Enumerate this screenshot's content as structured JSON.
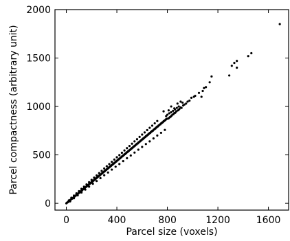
{
  "chart_data": {
    "type": "scatter",
    "title": "",
    "xlabel": "Parcel size (voxels)",
    "ylabel": "Parcel compactness (arbitrary unit)",
    "xlim": [
      -90,
      1760
    ],
    "ylim": [
      -70,
      2000
    ],
    "xticks": [
      0,
      400,
      800,
      1200,
      1600
    ],
    "yticks": [
      0,
      500,
      1000,
      1500,
      2000
    ],
    "grid": false,
    "marker_color": "#000000",
    "note": "Dense cloud of roughly linear points (y ≈ 1.08·x); dense band digitized as a representative sample, sparse outliers listed individually.",
    "points": [
      [
        0,
        0
      ],
      [
        5,
        6
      ],
      [
        10,
        11
      ],
      [
        15,
        15
      ],
      [
        20,
        22
      ],
      [
        25,
        27
      ],
      [
        30,
        34
      ],
      [
        35,
        38
      ],
      [
        40,
        44
      ],
      [
        45,
        48
      ],
      [
        50,
        55
      ],
      [
        55,
        58
      ],
      [
        60,
        66
      ],
      [
        65,
        70
      ],
      [
        70,
        77
      ],
      [
        75,
        80
      ],
      [
        80,
        88
      ],
      [
        85,
        90
      ],
      [
        90,
        99
      ],
      [
        95,
        102
      ],
      [
        100,
        110
      ],
      [
        105,
        112
      ],
      [
        110,
        121
      ],
      [
        115,
        124
      ],
      [
        120,
        132
      ],
      [
        125,
        134
      ],
      [
        130,
        143
      ],
      [
        135,
        146
      ],
      [
        140,
        154
      ],
      [
        145,
        156
      ],
      [
        150,
        165
      ],
      [
        155,
        168
      ],
      [
        160,
        176
      ],
      [
        165,
        178
      ],
      [
        170,
        187
      ],
      [
        175,
        190
      ],
      [
        180,
        198
      ],
      [
        185,
        200
      ],
      [
        190,
        209
      ],
      [
        195,
        212
      ],
      [
        200,
        220
      ],
      [
        205,
        222
      ],
      [
        210,
        231
      ],
      [
        215,
        234
      ],
      [
        220,
        242
      ],
      [
        225,
        244
      ],
      [
        230,
        253
      ],
      [
        235,
        256
      ],
      [
        240,
        264
      ],
      [
        245,
        266
      ],
      [
        250,
        275
      ],
      [
        255,
        278
      ],
      [
        260,
        286
      ],
      [
        265,
        288
      ],
      [
        270,
        297
      ],
      [
        275,
        300
      ],
      [
        280,
        308
      ],
      [
        285,
        310
      ],
      [
        290,
        319
      ],
      [
        295,
        322
      ],
      [
        300,
        330
      ],
      [
        305,
        332
      ],
      [
        310,
        341
      ],
      [
        315,
        344
      ],
      [
        320,
        352
      ],
      [
        325,
        354
      ],
      [
        330,
        363
      ],
      [
        335,
        366
      ],
      [
        340,
        374
      ],
      [
        345,
        376
      ],
      [
        350,
        385
      ],
      [
        355,
        388
      ],
      [
        360,
        396
      ],
      [
        365,
        398
      ],
      [
        370,
        407
      ],
      [
        375,
        410
      ],
      [
        380,
        418
      ],
      [
        385,
        420
      ],
      [
        390,
        429
      ],
      [
        395,
        432
      ],
      [
        400,
        440
      ],
      [
        405,
        442
      ],
      [
        410,
        451
      ],
      [
        415,
        454
      ],
      [
        420,
        462
      ],
      [
        425,
        464
      ],
      [
        430,
        473
      ],
      [
        435,
        476
      ],
      [
        440,
        484
      ],
      [
        445,
        486
      ],
      [
        450,
        495
      ],
      [
        455,
        498
      ],
      [
        460,
        506
      ],
      [
        465,
        508
      ],
      [
        470,
        517
      ],
      [
        475,
        520
      ],
      [
        480,
        528
      ],
      [
        485,
        530
      ],
      [
        490,
        539
      ],
      [
        495,
        542
      ],
      [
        500,
        550
      ],
      [
        505,
        552
      ],
      [
        510,
        561
      ],
      [
        515,
        564
      ],
      [
        520,
        572
      ],
      [
        525,
        574
      ],
      [
        530,
        583
      ],
      [
        535,
        586
      ],
      [
        540,
        594
      ],
      [
        545,
        596
      ],
      [
        550,
        605
      ],
      [
        555,
        608
      ],
      [
        560,
        616
      ],
      [
        565,
        618
      ],
      [
        570,
        627
      ],
      [
        575,
        630
      ],
      [
        580,
        638
      ],
      [
        585,
        640
      ],
      [
        590,
        649
      ],
      [
        595,
        652
      ],
      [
        600,
        660
      ],
      [
        605,
        662
      ],
      [
        610,
        671
      ],
      [
        615,
        674
      ],
      [
        620,
        682
      ],
      [
        625,
        684
      ],
      [
        630,
        693
      ],
      [
        635,
        696
      ],
      [
        640,
        704
      ],
      [
        645,
        706
      ],
      [
        650,
        715
      ],
      [
        655,
        718
      ],
      [
        660,
        726
      ],
      [
        665,
        728
      ],
      [
        670,
        737
      ],
      [
        675,
        740
      ],
      [
        680,
        748
      ],
      [
        685,
        750
      ],
      [
        690,
        759
      ],
      [
        695,
        762
      ],
      [
        700,
        770
      ],
      [
        705,
        772
      ],
      [
        710,
        781
      ],
      [
        715,
        784
      ],
      [
        720,
        792
      ],
      [
        725,
        794
      ],
      [
        730,
        803
      ],
      [
        735,
        806
      ],
      [
        740,
        814
      ],
      [
        745,
        816
      ],
      [
        750,
        825
      ],
      [
        755,
        828
      ],
      [
        760,
        836
      ],
      [
        765,
        838
      ],
      [
        770,
        847
      ],
      [
        775,
        850
      ],
      [
        780,
        858
      ],
      [
        785,
        860
      ],
      [
        790,
        869
      ],
      [
        795,
        872
      ],
      [
        20,
        30
      ],
      [
        40,
        58
      ],
      [
        60,
        80
      ],
      [
        80,
        103
      ],
      [
        100,
        125
      ],
      [
        120,
        150
      ],
      [
        140,
        172
      ],
      [
        160,
        195
      ],
      [
        180,
        218
      ],
      [
        200,
        242
      ],
      [
        220,
        265
      ],
      [
        240,
        288
      ],
      [
        260,
        312
      ],
      [
        280,
        335
      ],
      [
        300,
        360
      ],
      [
        320,
        383
      ],
      [
        340,
        405
      ],
      [
        360,
        428
      ],
      [
        380,
        452
      ],
      [
        400,
        476
      ],
      [
        420,
        498
      ],
      [
        440,
        522
      ],
      [
        460,
        546
      ],
      [
        480,
        570
      ],
      [
        500,
        592
      ],
      [
        520,
        616
      ],
      [
        540,
        640
      ],
      [
        560,
        662
      ],
      [
        580,
        686
      ],
      [
        600,
        710
      ],
      [
        620,
        732
      ],
      [
        640,
        756
      ],
      [
        660,
        780
      ],
      [
        680,
        802
      ],
      [
        700,
        826
      ],
      [
        720,
        850
      ],
      [
        30,
        20
      ],
      [
        60,
        52
      ],
      [
        90,
        82
      ],
      [
        120,
        112
      ],
      [
        150,
        142
      ],
      [
        180,
        172
      ],
      [
        210,
        202
      ],
      [
        240,
        230
      ],
      [
        270,
        260
      ],
      [
        300,
        290
      ],
      [
        330,
        318
      ],
      [
        360,
        348
      ],
      [
        390,
        378
      ],
      [
        420,
        406
      ],
      [
        450,
        436
      ],
      [
        480,
        466
      ],
      [
        510,
        494
      ],
      [
        540,
        524
      ],
      [
        570,
        554
      ],
      [
        600,
        582
      ],
      [
        630,
        612
      ],
      [
        660,
        640
      ],
      [
        690,
        670
      ],
      [
        720,
        700
      ],
      [
        750,
        728
      ],
      [
        780,
        758
      ],
      [
        805,
        875
      ],
      [
        812,
        880
      ],
      [
        820,
        890
      ],
      [
        826,
        895
      ],
      [
        833,
        905
      ],
      [
        840,
        915
      ],
      [
        848,
        920
      ],
      [
        855,
        932
      ],
      [
        862,
        935
      ],
      [
        870,
        948
      ],
      [
        880,
        958
      ],
      [
        888,
        962
      ],
      [
        895,
        975
      ],
      [
        905,
        990
      ],
      [
        912,
        985
      ],
      [
        925,
        1010
      ],
      [
        935,
        1020
      ],
      [
        948,
        1030
      ],
      [
        790,
        900
      ],
      [
        800,
        915
      ],
      [
        815,
        930
      ],
      [
        830,
        940
      ],
      [
        845,
        955
      ],
      [
        860,
        970
      ],
      [
        875,
        985
      ],
      [
        890,
        1000
      ],
      [
        770,
        950
      ],
      [
        810,
        960
      ],
      [
        830,
        1000
      ],
      [
        855,
        980
      ],
      [
        880,
        1030
      ],
      [
        905,
        1050
      ],
      [
        920,
        1040
      ],
      [
        960,
        1050
      ],
      [
        975,
        1060
      ],
      [
        990,
        1090
      ],
      [
        1010,
        1100
      ],
      [
        1020,
        1110
      ],
      [
        1050,
        1140
      ],
      [
        1080,
        1160
      ],
      [
        1105,
        1200
      ],
      [
        1135,
        1250
      ],
      [
        1070,
        1100
      ],
      [
        1090,
        1190
      ],
      [
        1150,
        1310
      ],
      [
        1290,
        1320
      ],
      [
        1310,
        1420
      ],
      [
        1330,
        1450
      ],
      [
        1350,
        1470
      ],
      [
        1350,
        1400
      ],
      [
        1440,
        1520
      ],
      [
        1465,
        1550
      ],
      [
        1690,
        1850
      ]
    ]
  },
  "axes": {
    "tick_color": "#000000",
    "frame_color": "#000000"
  }
}
